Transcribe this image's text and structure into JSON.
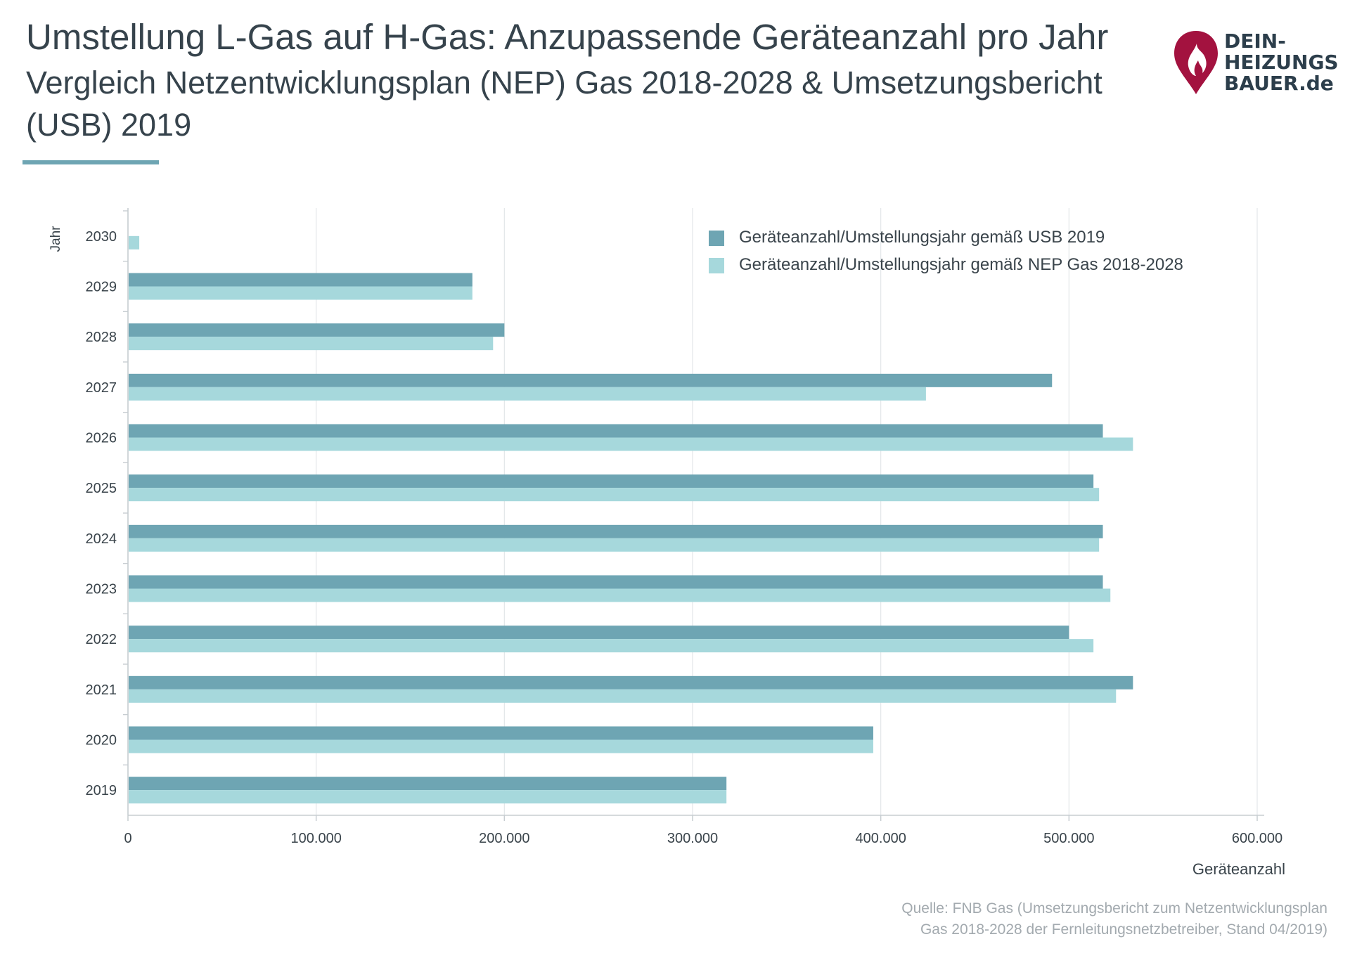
{
  "header": {
    "title": "Umstellung L-Gas auf H-Gas: Anzupassende Geräteanzahl pro Jahr",
    "subtitle": "Vergleich Netzentwicklungsplan (NEP) Gas 2018-2028 & Umsetzungsbericht (USB) 2019"
  },
  "logo": {
    "line1": "DEIN-",
    "line2": "HEIZUNGS",
    "line3": "BAUER",
    "line3_suffix": ".de",
    "colors": {
      "flame": "#a3123f",
      "text": "#2c3e4b"
    }
  },
  "source": {
    "line1": "Quelle: FNB Gas (Umsetzungsbericht zum Netzentwicklungsplan",
    "line2": "Gas 2018-2028 der Fernleitungsnetzbetreiber, Stand 04/2019)"
  },
  "colors": {
    "usb": "#6ea5b3",
    "nep": "#a6d8dc",
    "grid": "#e3e6e8",
    "axis": "#c7cdd1",
    "accent": "#6ea5b3"
  },
  "chart_data": {
    "type": "bar",
    "orientation": "horizontal",
    "title": "",
    "xlabel": "Geräteanzahl",
    "ylabel": "Jahr",
    "xlim": [
      0,
      600000
    ],
    "xticks": [
      0,
      100000,
      200000,
      300000,
      400000,
      500000,
      600000
    ],
    "xtick_labels": [
      "0",
      "100.000",
      "200.000",
      "300.000",
      "400.000",
      "500.000",
      "600.000"
    ],
    "categories": [
      "2019",
      "2020",
      "2021",
      "2022",
      "2023",
      "2024",
      "2025",
      "2026",
      "2027",
      "2028",
      "2029",
      "2030"
    ],
    "series": [
      {
        "name": "Geräteanzahl/Umstellungsjahr gemäß USB 2019",
        "color": "#6ea5b3",
        "values": [
          318000,
          396000,
          534000,
          500000,
          518000,
          518000,
          513000,
          518000,
          491000,
          200000,
          183000,
          0
        ]
      },
      {
        "name": "Geräteanzahl/Umstellungsjahr gemäß NEP Gas 2018-2028",
        "color": "#a6d8dc",
        "values": [
          318000,
          396000,
          525000,
          513000,
          522000,
          516000,
          516000,
          534000,
          424000,
          194000,
          183000,
          6000
        ]
      }
    ],
    "grid": true,
    "legend_position": "top-right"
  }
}
